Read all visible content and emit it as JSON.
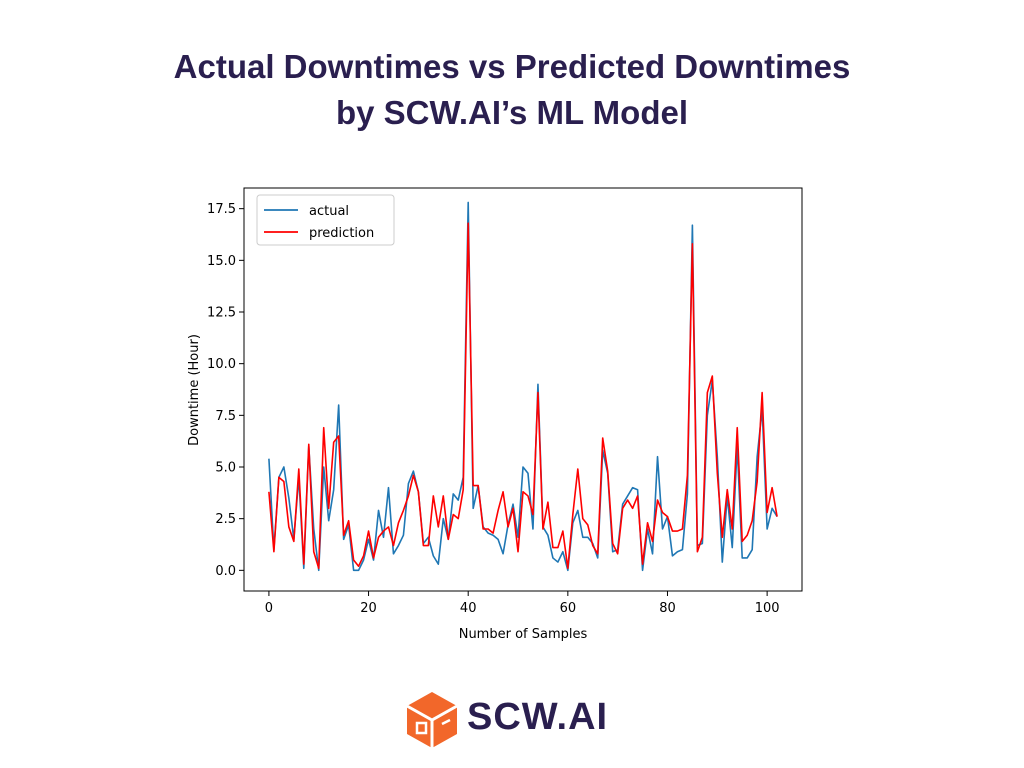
{
  "title": {
    "line1": "Actual Downtimes vs Predicted Downtimes",
    "line2": "by SCW.AI’s ML Model"
  },
  "logo": {
    "text": "SCW.AI",
    "icon": "scw-box-logo-icon",
    "color": "#f2672a"
  },
  "chart_data": {
    "type": "line",
    "title": "",
    "xlabel": "Number of Samples",
    "ylabel": "Downtime (Hour)",
    "xlim": [
      -5,
      107
    ],
    "ylim": [
      -1.0,
      18.5
    ],
    "xticks": [
      0,
      20,
      40,
      60,
      80,
      100
    ],
    "yticks": [
      0.0,
      2.5,
      5.0,
      7.5,
      10.0,
      12.5,
      15.0,
      17.5
    ],
    "ytick_labels": [
      "0.0",
      "2.5",
      "5.0",
      "7.5",
      "10.0",
      "12.5",
      "15.0",
      "17.5"
    ],
    "grid": false,
    "legend_position": "top-left",
    "series": [
      {
        "name": "actual",
        "color": "#1f77b4",
        "values": [
          5.4,
          1.0,
          4.5,
          5.0,
          3.5,
          1.5,
          4.5,
          0.1,
          6.0,
          2.0,
          0.0,
          5.0,
          2.4,
          3.9,
          8.0,
          1.5,
          2.2,
          0.0,
          0.0,
          0.5,
          1.5,
          0.5,
          2.9,
          1.6,
          4.0,
          0.8,
          1.2,
          1.7,
          4.2,
          4.8,
          3.8,
          1.3,
          1.6,
          0.7,
          0.3,
          2.5,
          1.5,
          3.7,
          3.4,
          4.5,
          17.8,
          3.0,
          4.1,
          2.1,
          1.8,
          1.7,
          1.5,
          0.8,
          2.2,
          3.2,
          1.6,
          5.0,
          4.7,
          2.0,
          9.0,
          2.1,
          1.7,
          0.6,
          0.4,
          0.9,
          0.0,
          2.3,
          2.9,
          1.6,
          1.6,
          1.3,
          0.6,
          5.8,
          4.7,
          0.9,
          1.0,
          3.2,
          3.6,
          4.0,
          3.9,
          0.0,
          2.0,
          0.8,
          5.5,
          2.0,
          2.6,
          0.7,
          0.9,
          1.0,
          3.7,
          16.7,
          1.2,
          1.3,
          7.5,
          9.2,
          5.5,
          0.4,
          3.6,
          1.1,
          6.0,
          0.6,
          0.6,
          1.0,
          5.5,
          7.8,
          2.0,
          3.0,
          2.6
        ]
      },
      {
        "name": "prediction",
        "color": "#ff0000",
        "values": [
          3.8,
          0.9,
          4.5,
          4.3,
          2.1,
          1.4,
          4.9,
          0.3,
          6.1,
          0.9,
          0.1,
          6.9,
          3.0,
          6.2,
          6.5,
          1.7,
          2.4,
          0.5,
          0.2,
          0.7,
          1.9,
          0.6,
          1.6,
          1.9,
          2.1,
          1.2,
          2.3,
          2.9,
          3.6,
          4.6,
          3.8,
          1.2,
          1.2,
          3.6,
          2.1,
          3.6,
          1.5,
          2.7,
          2.5,
          3.9,
          16.8,
          4.1,
          4.1,
          2.0,
          2.0,
          1.8,
          2.9,
          3.8,
          2.1,
          3.0,
          0.9,
          3.8,
          3.6,
          2.7,
          8.6,
          2.0,
          3.3,
          1.1,
          1.1,
          1.9,
          0.1,
          2.7,
          4.9,
          2.5,
          2.2,
          1.2,
          0.8,
          6.4,
          4.8,
          1.3,
          0.8,
          3.0,
          3.4,
          3.0,
          3.6,
          0.3,
          2.3,
          1.4,
          3.4,
          2.8,
          2.6,
          1.9,
          1.9,
          2.0,
          4.6,
          15.8,
          0.9,
          1.6,
          8.6,
          9.4,
          4.7,
          1.6,
          3.9,
          2.0,
          6.9,
          1.4,
          1.7,
          2.4,
          4.3,
          8.6,
          2.8,
          4.0,
          2.6
        ]
      }
    ]
  }
}
